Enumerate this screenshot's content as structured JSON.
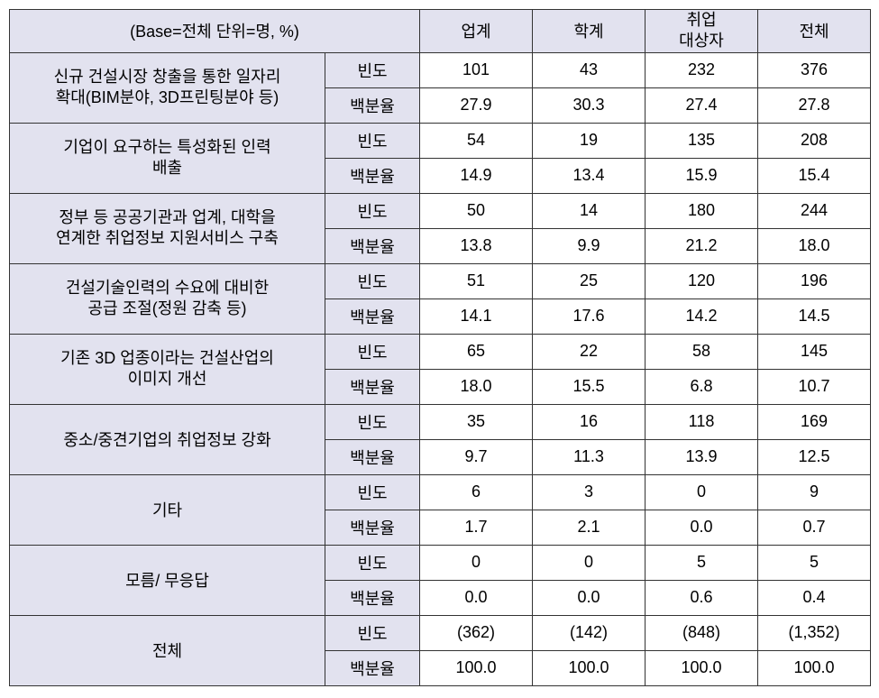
{
  "header": {
    "base_label": "(Base=전체  단위=명, %)",
    "cols": [
      "업계",
      "학계",
      "취업\n대상자",
      "전체"
    ]
  },
  "metrics": {
    "freq": "빈도",
    "pct": "백분율"
  },
  "rows": [
    {
      "label": "신규 건설시장 창출을 통한 일자리\n확대(BIM분야, 3D프린팅분야 등)",
      "freq": [
        "101",
        "43",
        "232",
        "376"
      ],
      "pct": [
        "27.9",
        "30.3",
        "27.4",
        "27.8"
      ]
    },
    {
      "label": "기업이 요구하는 특성화된 인력\n배출",
      "freq": [
        "54",
        "19",
        "135",
        "208"
      ],
      "pct": [
        "14.9",
        "13.4",
        "15.9",
        "15.4"
      ]
    },
    {
      "label": "정부 등 공공기관과 업계, 대학을\n연계한 취업정보 지원서비스 구축",
      "freq": [
        "50",
        "14",
        "180",
        "244"
      ],
      "pct": [
        "13.8",
        "9.9",
        "21.2",
        "18.0"
      ]
    },
    {
      "label": "건설기술인력의 수요에 대비한\n공급 조절(정원 감축 등)",
      "freq": [
        "51",
        "25",
        "120",
        "196"
      ],
      "pct": [
        "14.1",
        "17.6",
        "14.2",
        "14.5"
      ]
    },
    {
      "label": "기존 3D 업종이라는 건설산업의\n이미지 개선",
      "freq": [
        "65",
        "22",
        "58",
        "145"
      ],
      "pct": [
        "18.0",
        "15.5",
        "6.8",
        "10.7"
      ]
    },
    {
      "label": "중소/중견기업의 취업정보 강화",
      "freq": [
        "35",
        "16",
        "118",
        "169"
      ],
      "pct": [
        "9.7",
        "11.3",
        "13.9",
        "12.5"
      ]
    },
    {
      "label": "기타",
      "freq": [
        "6",
        "3",
        "0",
        "9"
      ],
      "pct": [
        "1.7",
        "2.1",
        "0.0",
        "0.7"
      ]
    },
    {
      "label": "모름/ 무응답",
      "freq": [
        "0",
        "0",
        "5",
        "5"
      ],
      "pct": [
        "0.0",
        "0.0",
        "0.6",
        "0.4"
      ]
    },
    {
      "label": "전체",
      "freq": [
        "(362)",
        "(142)",
        "(848)",
        "(1,352)"
      ],
      "pct": [
        "100.0",
        "100.0",
        "100.0",
        "100.0"
      ]
    }
  ],
  "colors": {
    "header_bg": "#e2e2ef",
    "border": "#333333",
    "bg": "#ffffff",
    "text": "#000000"
  },
  "typography": {
    "font_size_pt": 14
  }
}
